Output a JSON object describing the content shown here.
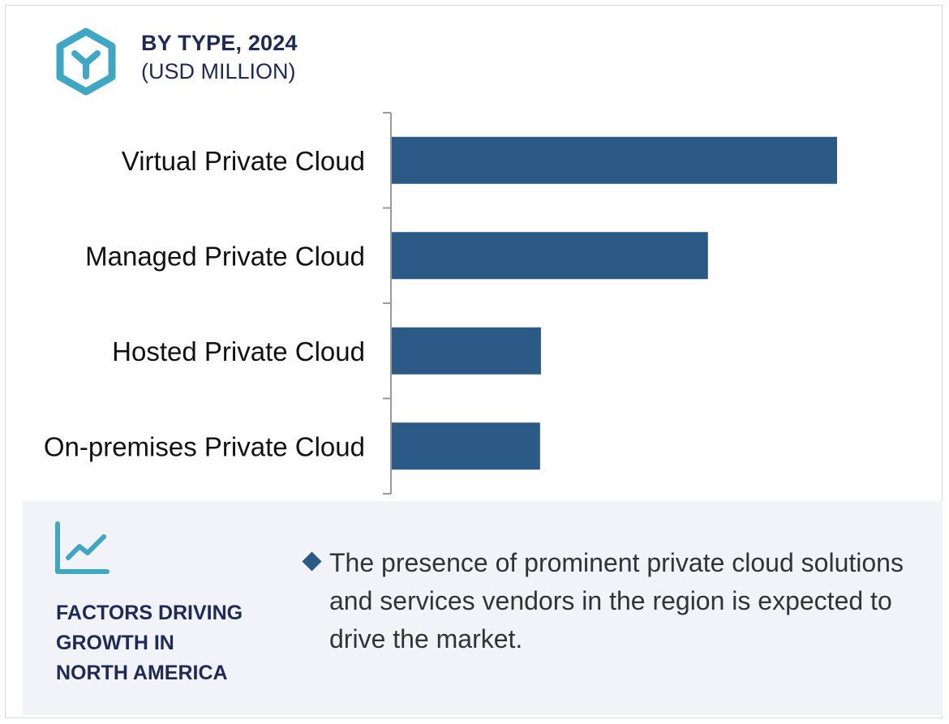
{
  "header": {
    "title": "BY TYPE, 2024",
    "subtitle": "(USD MILLION)",
    "icon": "cube-icon"
  },
  "chart_data": {
    "type": "bar",
    "orientation": "horizontal",
    "title": "BY TYPE, 2024",
    "subtitle": "(USD MILLION)",
    "categories": [
      "Virtual Private Cloud",
      "Managed Private Cloud",
      "Hosted Private Cloud",
      "On-premises Private Cloud"
    ],
    "values": [
      100,
      71,
      33.5,
      33.3
    ],
    "value_scale": "relative (no axis values shown)",
    "xlim": [
      0,
      100
    ],
    "bar_color": "#2c5a87",
    "grid": false,
    "legend": "none"
  },
  "factors": {
    "icon": "line-chart-icon",
    "title_lines": [
      "FACTORS DRIVING",
      "GROWTH IN",
      "NORTH AMERICA"
    ],
    "bullet": "The presence of prominent private cloud solutions and services vendors in the region is expected to drive the market."
  },
  "colors": {
    "bar": "#2c5a87",
    "accent_teal": "#3fa7c4",
    "heading_navy": "#1d2a57",
    "panel_bg": "#f1f3f8"
  }
}
